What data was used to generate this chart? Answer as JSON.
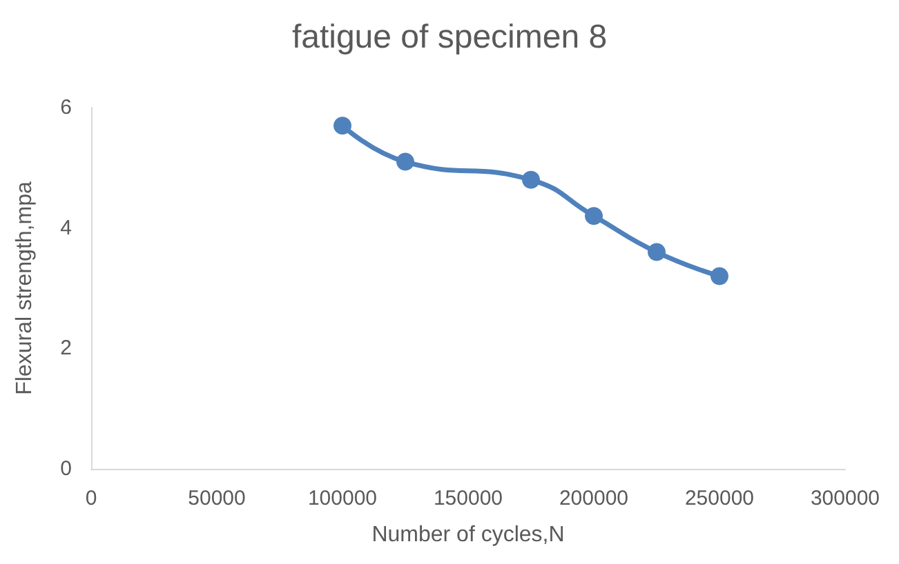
{
  "chart_data": {
    "type": "line",
    "title": "fatigue of specimen 8",
    "xlabel": "Number of cycles,N",
    "ylabel": "Flexural strength,mpa",
    "x": [
      100000,
      125000,
      175000,
      200000,
      225000,
      250000
    ],
    "series": [
      {
        "color": "#4f81bd",
        "values": [
          5.7,
          5.1,
          4.8,
          4.2,
          3.6,
          3.2
        ]
      }
    ],
    "xlim": [
      0,
      300000
    ],
    "xticks": [
      0,
      50000,
      100000,
      150000,
      200000,
      250000,
      300000
    ],
    "ylim": [
      0,
      6
    ],
    "yticks": [
      0,
      2,
      4,
      6
    ],
    "grid": false,
    "marker": "circle",
    "line_style": "solid"
  }
}
